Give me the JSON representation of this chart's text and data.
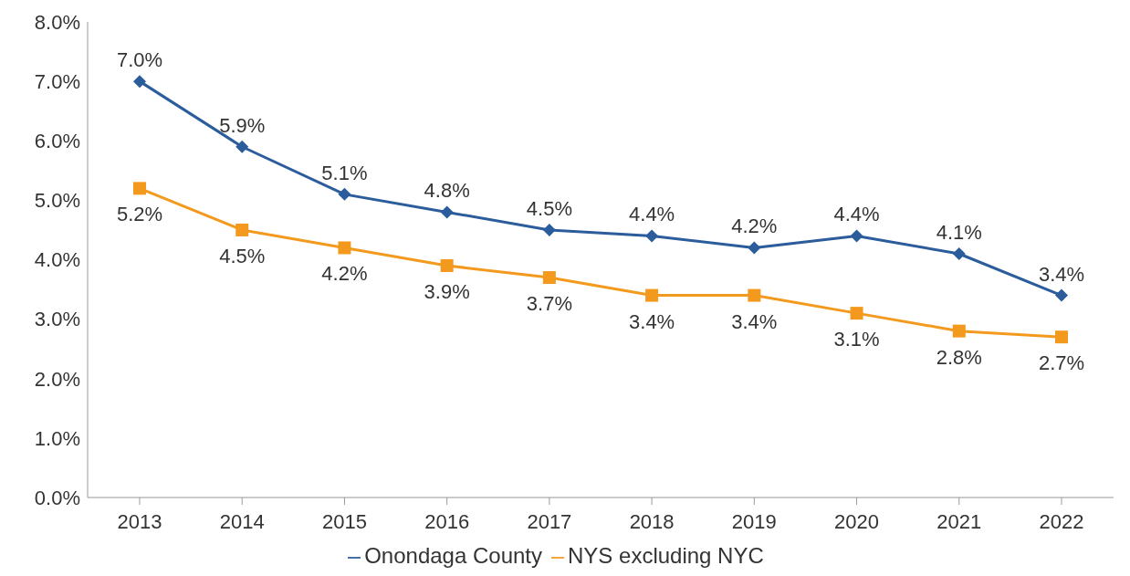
{
  "chart_data": {
    "type": "line",
    "categories": [
      "2013",
      "2014",
      "2015",
      "2016",
      "2017",
      "2018",
      "2019",
      "2020",
      "2021",
      "2022"
    ],
    "series": [
      {
        "name": "Onondaga County",
        "color": "#2b5c9c",
        "marker": "diamond",
        "values": [
          7.0,
          5.9,
          5.1,
          4.8,
          4.5,
          4.4,
          4.2,
          4.4,
          4.1,
          3.4
        ],
        "value_labels": [
          "7.0%",
          "5.9%",
          "5.1%",
          "4.8%",
          "4.5%",
          "4.4%",
          "4.2%",
          "4.4%",
          "4.1%",
          "3.4%"
        ]
      },
      {
        "name": "NYS excluding NYC",
        "color": "#f39a1e",
        "marker": "square",
        "values": [
          5.2,
          4.5,
          4.2,
          3.9,
          3.7,
          3.4,
          3.4,
          3.1,
          2.8,
          2.7
        ],
        "value_labels": [
          "5.2%",
          "4.5%",
          "4.2%",
          "3.9%",
          "3.7%",
          "3.4%",
          "3.4%",
          "3.1%",
          "2.8%",
          "2.7%"
        ]
      }
    ],
    "ylim": [
      0,
      8
    ],
    "yticks": [
      {
        "value": 0,
        "label": "0.0%"
      },
      {
        "value": 1,
        "label": "1.0%"
      },
      {
        "value": 2,
        "label": "2.0%"
      },
      {
        "value": 3,
        "label": "3.0%"
      },
      {
        "value": 4,
        "label": "4.0%"
      },
      {
        "value": 5,
        "label": "5.0%"
      },
      {
        "value": 6,
        "label": "6.0%"
      },
      {
        "value": 7,
        "label": "7.0%"
      },
      {
        "value": 8,
        "label": "8.0%"
      }
    ],
    "grid": false,
    "legend": "bottom",
    "line_style": "solid"
  }
}
